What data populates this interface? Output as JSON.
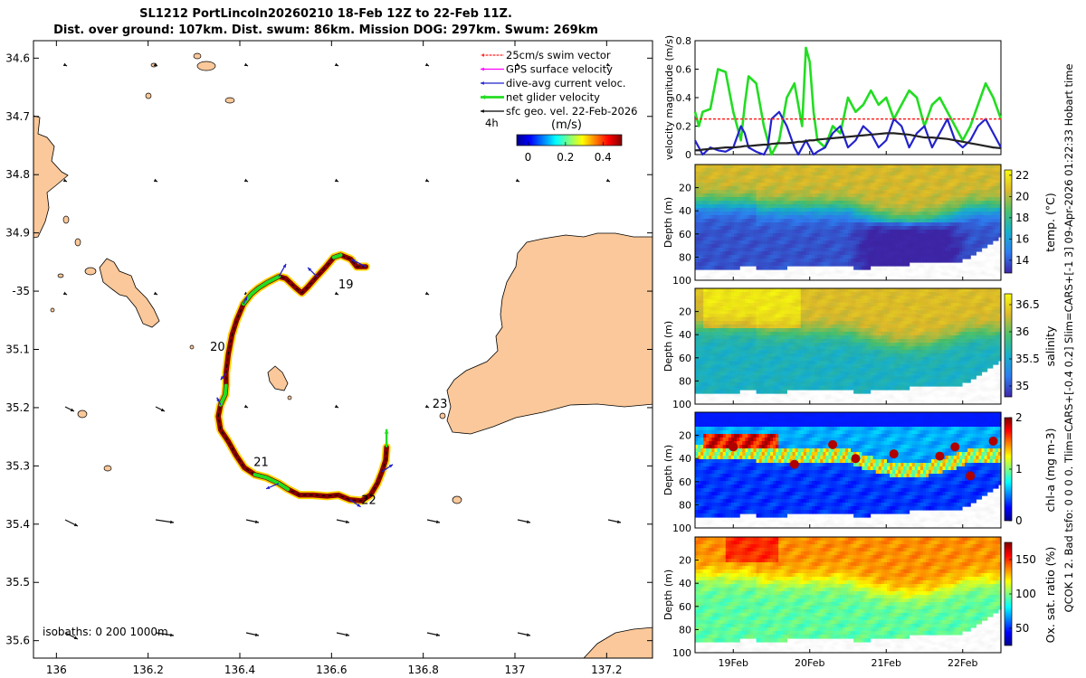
{
  "title": {
    "line1": "SL1212 PortLincoln20260210 18-Feb 12Z to 22-Feb 11Z.",
    "line2": "Dist. over ground: 107km. Dist. swum: 86km. Mission DOG: 297km. Swum: 269km"
  },
  "side_label": "QCOK 1  2. Bad tsfo: 0  0  0  0. Tlim=CARS+[-0.4 0.2] Slim=CARS+[-1 3] 09-Apr-2026 01:22:33 Hobart time",
  "colors": {
    "land": "#FAC89A",
    "track": "#8B0000",
    "track_outline": "#FFD500",
    "green": "#22DD22",
    "blue": "#2222CC",
    "red": "#FF2020",
    "magenta": "#FF00FF"
  },
  "chart_data": [
    {
      "type": "map",
      "x": {
        "ticks": [
          136,
          136.2,
          136.4,
          136.6,
          136.8,
          137,
          137.2
        ],
        "tick_labels": [
          "136",
          "136.2",
          "136.4",
          "136.6",
          "136.8",
          "137",
          "137.2"
        ],
        "range": [
          135.95,
          137.3
        ]
      },
      "y": {
        "ticks": [
          34.6,
          34.7,
          34.8,
          34.9,
          35.0,
          35.1,
          35.2,
          35.3,
          35.4,
          35.5,
          35.6
        ],
        "tick_labels": [
          "34.6",
          "34.7",
          "34.8",
          "34.9",
          "-35",
          "35.1",
          "35.2",
          "35.3",
          "35.4",
          "35.5",
          "35.6"
        ],
        "range": [
          34.57,
          35.63
        ]
      },
      "legend": [
        {
          "label": "25cm/s swim vector",
          "color": "#FF2020"
        },
        {
          "label": "GPS surface velocity",
          "color": "#FF00FF"
        },
        {
          "label": "dive-avg current veloc.",
          "color": "#2222CC"
        },
        {
          "label": "net glider velocity",
          "color": "#22DD22"
        },
        {
          "label": "sfc geo. vel. 22-Feb-2026",
          "color": "#000000"
        }
      ],
      "legend_extra": "4h",
      "colorbar": {
        "label": "(m/s)",
        "ticks": [
          0,
          0.2,
          0.4
        ],
        "tick_labels": [
          "0",
          "0.2",
          "0.4"
        ],
        "range": [
          -0.06,
          0.5
        ]
      },
      "day_labels": [
        {
          "text": "19",
          "lon": 136.615,
          "lat": 34.995
        },
        {
          "text": "20",
          "lon": 136.335,
          "lat": 35.102
        },
        {
          "text": "21",
          "lon": 136.43,
          "lat": 35.3
        },
        {
          "text": "22",
          "lon": 136.665,
          "lat": 35.365
        },
        {
          "text": "23",
          "lon": 136.82,
          "lat": 35.2
        }
      ],
      "isobaths_label": "isobaths: 0   200  1000m",
      "track": [
        [
          136.675,
          34.958
        ],
        [
          136.655,
          34.958
        ],
        [
          136.642,
          34.945
        ],
        [
          136.62,
          34.938
        ],
        [
          136.605,
          34.942
        ],
        [
          136.588,
          34.958
        ],
        [
          136.568,
          34.975
        ],
        [
          136.548,
          34.993
        ],
        [
          136.535,
          35.003
        ],
        [
          136.52,
          34.993
        ],
        [
          136.5,
          34.978
        ],
        [
          136.485,
          34.975
        ],
        [
          136.46,
          34.985
        ],
        [
          136.44,
          34.995
        ],
        [
          136.425,
          35.005
        ],
        [
          136.408,
          35.022
        ],
        [
          136.393,
          35.05
        ],
        [
          136.383,
          35.075
        ],
        [
          136.375,
          35.108
        ],
        [
          136.37,
          35.14
        ],
        [
          136.37,
          35.162
        ],
        [
          136.368,
          35.178
        ],
        [
          136.358,
          35.195
        ],
        [
          136.353,
          35.215
        ],
        [
          136.358,
          35.238
        ],
        [
          136.375,
          35.258
        ],
        [
          136.392,
          35.282
        ],
        [
          136.41,
          35.303
        ],
        [
          136.433,
          35.315
        ],
        [
          136.458,
          35.32
        ],
        [
          136.485,
          35.33
        ],
        [
          136.505,
          35.34
        ],
        [
          136.53,
          35.35
        ],
        [
          136.56,
          35.35
        ],
        [
          136.59,
          35.352
        ],
        [
          136.615,
          35.35
        ],
        [
          136.64,
          35.358
        ],
        [
          136.665,
          35.36
        ],
        [
          136.685,
          35.35
        ],
        [
          136.7,
          35.33
        ],
        [
          136.71,
          35.31
        ],
        [
          136.718,
          35.29
        ],
        [
          136.72,
          35.268
        ]
      ]
    },
    {
      "type": "line",
      "ylabel": "velocity magnitude (m/s)",
      "ylim": [
        0,
        0.8
      ],
      "y_ticks": [
        0,
        0.2,
        0.4,
        0.6,
        0.8
      ],
      "y_tick_labels": [
        "0",
        "0.2",
        "0.4",
        "0.6",
        "0.8"
      ],
      "x": [
        18.5,
        18.55,
        18.6,
        18.7,
        18.8,
        18.9,
        19.0,
        19.1,
        19.15,
        19.2,
        19.3,
        19.4,
        19.45,
        19.5,
        19.6,
        19.7,
        19.8,
        19.85,
        19.9,
        19.95,
        20.0,
        20.05,
        20.1,
        20.2,
        20.3,
        20.4,
        20.5,
        20.6,
        20.7,
        20.8,
        20.9,
        21.0,
        21.1,
        21.2,
        21.3,
        21.4,
        21.5,
        21.6,
        21.7,
        21.8,
        21.9,
        22.0,
        22.1,
        22.2,
        22.3,
        22.4,
        22.5
      ],
      "series": [
        {
          "name": "net glider velocity",
          "color": "#22DD22",
          "values": [
            0.3,
            0.2,
            0.3,
            0.32,
            0.6,
            0.58,
            0.3,
            0.1,
            0.35,
            0.55,
            0.5,
            0.2,
            0.1,
            0.0,
            0.1,
            0.4,
            0.5,
            0.35,
            0.2,
            0.75,
            0.65,
            0.3,
            0.1,
            0.05,
            0.2,
            0.15,
            0.4,
            0.3,
            0.35,
            0.45,
            0.35,
            0.4,
            0.25,
            0.35,
            0.45,
            0.4,
            0.2,
            0.35,
            0.4,
            0.3,
            0.2,
            0.1,
            0.2,
            0.35,
            0.5,
            0.4,
            0.25
          ]
        },
        {
          "name": "dive-avg current veloc.",
          "color": "#2222CC",
          "values": [
            0.1,
            0.05,
            0.0,
            0.05,
            0.03,
            0.02,
            0.05,
            0.2,
            0.15,
            0.05,
            0.02,
            0.0,
            0.05,
            0.25,
            0.3,
            0.2,
            0.05,
            0.0,
            0.05,
            0.1,
            0.05,
            0.0,
            0.02,
            0.05,
            0.15,
            0.2,
            0.05,
            0.1,
            0.2,
            0.15,
            0.05,
            0.1,
            0.25,
            0.2,
            0.05,
            0.15,
            0.2,
            0.05,
            0.15,
            0.25,
            0.1,
            0.05,
            0.1,
            0.2,
            0.25,
            0.15,
            0.05
          ]
        },
        {
          "name": "25cm/s swim vector",
          "color": "#FF2020",
          "values": [
            0.25,
            0.25,
            0.25,
            0.25,
            0.25,
            0.25,
            0.25,
            0.25,
            0.25,
            0.25,
            0.25,
            0.25,
            0.25,
            0.25,
            0.25,
            0.25,
            0.25,
            0.25,
            0.25,
            0.25,
            0.25,
            0.25,
            0.25,
            0.25,
            0.25,
            0.25,
            0.25,
            0.25,
            0.25,
            0.25,
            0.25,
            0.25,
            0.25,
            0.25,
            0.25,
            0.25,
            0.25,
            0.25,
            0.25,
            0.25,
            0.25,
            0.25,
            0.25,
            0.25,
            0.25,
            0.25,
            0.25
          ]
        },
        {
          "name": "sfc geo. vel.",
          "color": "#222222",
          "values": [
            0.03,
            0.03,
            0.035,
            0.04,
            0.045,
            0.05,
            0.05,
            0.055,
            0.06,
            0.06,
            0.065,
            0.07,
            0.07,
            0.075,
            0.08,
            0.08,
            0.085,
            0.09,
            0.09,
            0.095,
            0.1,
            0.1,
            0.105,
            0.11,
            0.115,
            0.12,
            0.125,
            0.13,
            0.135,
            0.14,
            0.145,
            0.15,
            0.15,
            0.145,
            0.14,
            0.13,
            0.12,
            0.12,
            0.115,
            0.11,
            0.1,
            0.09,
            0.08,
            0.07,
            0.06,
            0.05,
            0.045
          ]
        }
      ]
    },
    {
      "type": "heatmap",
      "variable": "temp. (°C)",
      "ylabel": "Depth (m)",
      "ylim": [
        0,
        100
      ],
      "y_ticks": [
        20,
        40,
        60,
        80,
        100
      ],
      "y_tick_labels": [
        "20",
        "40",
        "60",
        "80",
        "100"
      ],
      "clim": [
        12.8,
        22.5
      ],
      "c_ticks": [
        14,
        16,
        18,
        20,
        22
      ],
      "c_tick_labels": [
        "14",
        "16",
        "18",
        "20",
        "22"
      ],
      "colormap": "parula",
      "surface_value": 20.5,
      "deep_value": 13.8,
      "x_ticks": [
        19,
        20,
        21,
        22
      ],
      "x_tick_labels": [
        "19Feb",
        "20Feb",
        "21Feb",
        "22Feb"
      ]
    },
    {
      "type": "heatmap",
      "variable": "salinity",
      "ylabel": "Depth (m)",
      "ylim": [
        0,
        100
      ],
      "y_ticks": [
        20,
        40,
        60,
        80,
        100
      ],
      "y_tick_labels": [
        "20",
        "40",
        "60",
        "80",
        "100"
      ],
      "clim": [
        34.8,
        36.7
      ],
      "c_ticks": [
        35,
        35.5,
        36,
        36.5
      ],
      "c_tick_labels": [
        "35",
        "35.5",
        "36",
        "36.5"
      ],
      "colormap": "parula",
      "surface_value": 36.35,
      "deep_value": 35.6,
      "x_ticks": [
        19,
        20,
        21,
        22
      ],
      "x_tick_labels": [
        "19Feb",
        "20Feb",
        "21Feb",
        "22Feb"
      ]
    },
    {
      "type": "heatmap",
      "variable": "chl-a (mg m-3)",
      "ylabel": "Depth (m)",
      "ylim": [
        0,
        100
      ],
      "y_ticks": [
        20,
        40,
        60,
        80,
        100
      ],
      "y_tick_labels": [
        "20",
        "40",
        "60",
        "80",
        "100"
      ],
      "clim": [
        0,
        2
      ],
      "c_ticks": [
        0,
        1,
        2
      ],
      "c_tick_labels": [
        "0",
        "1",
        "2"
      ],
      "colormap": "jet",
      "surface_value": 0.6,
      "deep_value": 0.35,
      "x_ticks": [
        19,
        20,
        21,
        22
      ],
      "x_tick_labels": [
        "19Feb",
        "20Feb",
        "21Feb",
        "22Feb"
      ]
    },
    {
      "type": "heatmap",
      "variable": "Ox. sat. ratio (%)",
      "ylabel": "Depth (m)",
      "ylim": [
        0,
        100
      ],
      "y_ticks": [
        20,
        40,
        60,
        80,
        100
      ],
      "y_tick_labels": [
        "20",
        "40",
        "60",
        "80",
        "100"
      ],
      "clim": [
        25,
        175
      ],
      "c_ticks": [
        50,
        100,
        150
      ],
      "c_tick_labels": [
        "50",
        "100",
        "150"
      ],
      "colormap": "jet",
      "surface_value": 135,
      "deep_value": 95,
      "x_ticks": [
        19,
        20,
        21,
        22
      ],
      "x_tick_labels": [
        "19Feb",
        "20Feb",
        "21Feb",
        "22Feb"
      ]
    }
  ]
}
